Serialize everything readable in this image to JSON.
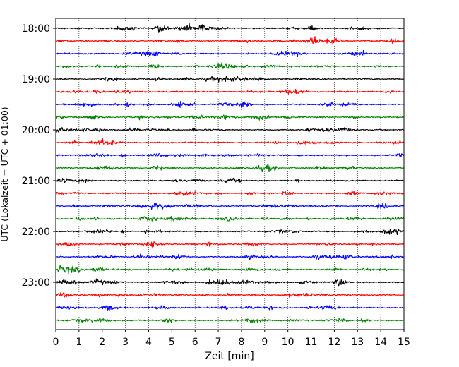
{
  "chart_data": {
    "type": "line",
    "title": "",
    "xlabel": "Zeit  [min]",
    "ylabel": "UTC (Lokalzeit = UTC + 01:00)",
    "xlim": [
      0,
      15
    ],
    "x_ticks": [
      "0",
      "1",
      "2",
      "3",
      "4",
      "5",
      "6",
      "7",
      "8",
      "9",
      "10",
      "11",
      "12",
      "13",
      "14",
      "15"
    ],
    "y_ticks": [
      "18:00",
      "19:00",
      "20:00",
      "21:00",
      "22:00",
      "23:00"
    ],
    "grid": {
      "x": true,
      "y": false,
      "style": "dotted"
    },
    "trace_start": "18:00",
    "trace_interval_minutes": 15,
    "trace_count": 24,
    "trace_colors": [
      "#000000",
      "#ff0000",
      "#0000ff",
      "#008000"
    ],
    "series": []
  }
}
